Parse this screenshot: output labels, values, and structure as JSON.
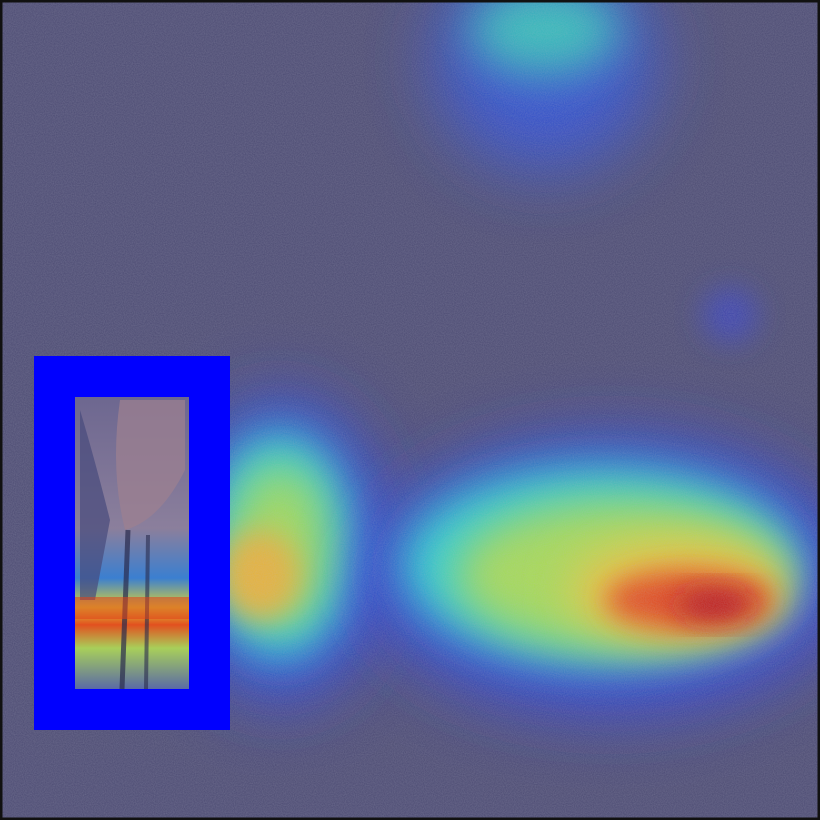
{
  "image": {
    "kind": "attention heatmap overlay",
    "colormap": "jet",
    "background_color": "#4b4a72",
    "frame_color": "#111111",
    "highlight_box_color": "#0000ff",
    "crop_tint": "#8a7f9a",
    "highlight_box_label": "",
    "title": ""
  }
}
